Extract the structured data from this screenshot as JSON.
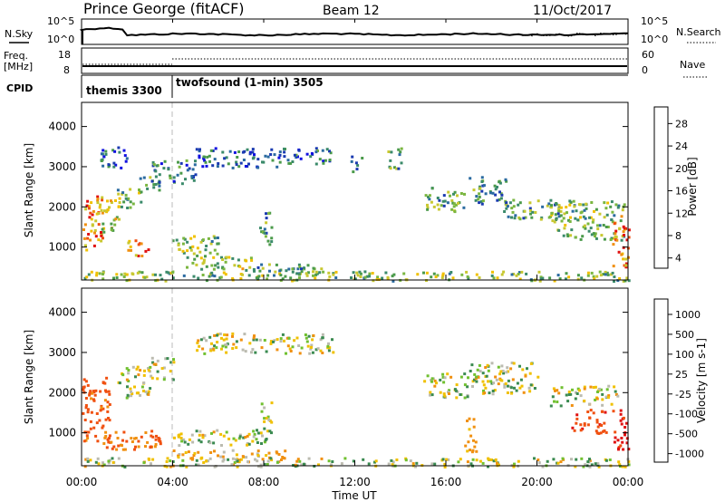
{
  "header": {
    "station": "Prince George (fitACF)",
    "beam": "Beam 12",
    "date": "11/Oct/2017"
  },
  "top_panels": {
    "noise_sky_label": "N.Sky",
    "noise_search_label": "N.Search",
    "noise_ticks_left": [
      "10^5",
      "10^0"
    ],
    "noise_ticks_right": [
      "10^5",
      "10^0"
    ],
    "freq_label_line1": "Freq.",
    "freq_label_line2": "[MHz]",
    "freq_ticks": [
      "18",
      "8"
    ],
    "nave_label": "Nave",
    "nave_ticks": [
      "60",
      "0"
    ],
    "cpid_label": "CPID",
    "cpid_modes": [
      {
        "name": "themis 3300",
        "start_hour": 0,
        "end_hour": 4
      },
      {
        "name": "twofsound (1-min) 3505",
        "start_hour": 4,
        "end_hour": 24
      }
    ]
  },
  "chart_data": [
    {
      "type": "heatmap",
      "title": "Power",
      "ylabel": "Slant Range [km]",
      "xlabel": "Time UT",
      "xlim": [
        0,
        24
      ],
      "ylim": [
        180,
        4600
      ],
      "y_ticks": [
        1000,
        2000,
        3000,
        4000
      ],
      "x_tick_labels": [
        "00:00",
        "04:00",
        "08:00",
        "12:00",
        "16:00",
        "20:00",
        "00:00"
      ],
      "colorbar": {
        "label": "Power [dB]",
        "range": [
          0,
          30
        ],
        "ticks": [
          "28",
          "24",
          "20",
          "16",
          "12",
          "8",
          "4"
        ],
        "colors": [
          "#1010e0",
          "#1a3ab0",
          "#2a6aa0",
          "#3a8a6a",
          "#4a9a4a",
          "#7ab640",
          "#c8c830",
          "#f0c000",
          "#f09010",
          "#f05010",
          "#e01010"
        ]
      },
      "scatter_regions": [
        {
          "t0": 0.0,
          "t1": 0.9,
          "r0": 900,
          "r1": 2300,
          "p": 24
        },
        {
          "t0": 0.6,
          "t1": 1.6,
          "r0": 1400,
          "r1": 2200,
          "p": 18
        },
        {
          "t0": 1.5,
          "t1": 2.6,
          "r0": 2000,
          "r1": 2500,
          "p": 14
        },
        {
          "t0": 2.4,
          "t1": 3.4,
          "r0": 2400,
          "r1": 2800,
          "p": 10
        },
        {
          "t0": 2.0,
          "t1": 3.0,
          "r0": 800,
          "r1": 1200,
          "p": 24
        },
        {
          "t0": 3.8,
          "t1": 6.0,
          "r0": 800,
          "r1": 1300,
          "p": 14
        },
        {
          "t0": 4.5,
          "t1": 7.5,
          "r0": 450,
          "r1": 800,
          "p": 16
        },
        {
          "t0": 0.8,
          "t1": 2.0,
          "r0": 3000,
          "r1": 3600,
          "p": 6
        },
        {
          "t0": 3.0,
          "t1": 5.0,
          "r0": 2600,
          "r1": 3200,
          "p": 8
        },
        {
          "t0": 5.0,
          "t1": 9.0,
          "r0": 3000,
          "r1": 3500,
          "p": 6
        },
        {
          "t0": 9.0,
          "t1": 11.0,
          "r0": 3100,
          "r1": 3500,
          "p": 8
        },
        {
          "t0": 11.8,
          "t1": 12.3,
          "r0": 2900,
          "r1": 3300,
          "p": 10
        },
        {
          "t0": 13.4,
          "t1": 14.0,
          "r0": 2900,
          "r1": 3500,
          "p": 12
        },
        {
          "t0": 15.0,
          "t1": 16.8,
          "r0": 1900,
          "r1": 2500,
          "p": 12
        },
        {
          "t0": 17.0,
          "t1": 18.6,
          "r0": 2100,
          "r1": 2800,
          "p": 10
        },
        {
          "t0": 18.5,
          "t1": 21.0,
          "r0": 1700,
          "r1": 2200,
          "p": 12
        },
        {
          "t0": 20.5,
          "t1": 23.8,
          "r0": 1200,
          "r1": 2200,
          "p": 14
        },
        {
          "t0": 23.3,
          "t1": 24.0,
          "r0": 500,
          "r1": 1800,
          "p": 24
        },
        {
          "t0": 0.0,
          "t1": 24.0,
          "r0": 180,
          "r1": 420,
          "p": 14
        },
        {
          "t0": 7.5,
          "t1": 11.0,
          "r0": 300,
          "r1": 600,
          "p": 12
        },
        {
          "t0": 7.8,
          "t1": 8.3,
          "r0": 1000,
          "r1": 2000,
          "p": 10
        }
      ]
    },
    {
      "type": "heatmap",
      "title": "Velocity",
      "ylabel": "Slant Range [km]",
      "xlabel": "Time UT",
      "xlim": [
        0,
        24
      ],
      "ylim": [
        180,
        4600
      ],
      "y_ticks": [
        1000,
        2000,
        3000,
        4000
      ],
      "x_tick_labels": [
        "00:00",
        "04:00",
        "08:00",
        "12:00",
        "16:00",
        "20:00",
        "00:00"
      ],
      "colorbar": {
        "label": "Velocity [m s-1]",
        "ticks": [
          "1000",
          "500",
          "100",
          "25",
          "-25",
          "-100",
          "-500",
          "-1000"
        ],
        "colors": [
          "#1010c0",
          "#2050a0",
          "#3a8a50",
          "#70c030",
          "#bbbbb0",
          "#f0c000",
          "#f09010",
          "#f05010",
          "#e01010"
        ]
      },
      "scatter_regions": [
        {
          "t0": 0.0,
          "t1": 1.2,
          "r0": 800,
          "r1": 2400,
          "v": -400
        },
        {
          "t0": 0.8,
          "t1": 3.5,
          "r0": 600,
          "r1": 1100,
          "v": -300
        },
        {
          "t0": 1.5,
          "t1": 3.0,
          "r0": 1900,
          "r1": 2700,
          "v": 0
        },
        {
          "t0": 3.0,
          "t1": 4.0,
          "r0": 2300,
          "r1": 2900,
          "v": 0
        },
        {
          "t0": 4.0,
          "t1": 8.0,
          "r0": 700,
          "r1": 1100,
          "v": 0
        },
        {
          "t0": 4.0,
          "t1": 9.0,
          "r0": 300,
          "r1": 600,
          "v": -100
        },
        {
          "t0": 5.0,
          "t1": 11.0,
          "r0": 3000,
          "r1": 3500,
          "v": 0
        },
        {
          "t0": 15.0,
          "t1": 17.0,
          "r0": 1900,
          "r1": 2500,
          "v": 0
        },
        {
          "t0": 17.0,
          "t1": 20.0,
          "r0": 2000,
          "r1": 2800,
          "v": 0
        },
        {
          "t0": 20.5,
          "t1": 23.5,
          "r0": 1700,
          "r1": 2200,
          "v": 0
        },
        {
          "t0": 21.5,
          "t1": 23.0,
          "r0": 1000,
          "r1": 1600,
          "v": -600
        },
        {
          "t0": 23.3,
          "t1": 24.0,
          "r0": 600,
          "r1": 1600,
          "v": -800
        },
        {
          "t0": 0.0,
          "t1": 24.0,
          "r0": 180,
          "r1": 400,
          "v": 0
        },
        {
          "t0": 16.8,
          "t1": 17.3,
          "r0": 500,
          "r1": 1400,
          "v": -200
        },
        {
          "t0": 7.8,
          "t1": 8.3,
          "r0": 800,
          "r1": 1800,
          "v": 60
        }
      ]
    }
  ]
}
